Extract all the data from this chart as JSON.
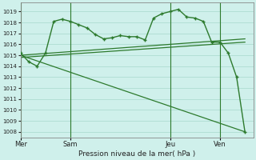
{
  "bg_color": "#cff0eb",
  "grid_color": "#a8d8cc",
  "line_color": "#2d7a2d",
  "ylabel_text": "Pression niveau de la mer( hPa )",
  "ylim": [
    1007.5,
    1019.8
  ],
  "yticks": [
    1008,
    1009,
    1010,
    1011,
    1012,
    1013,
    1014,
    1015,
    1016,
    1017,
    1018,
    1019
  ],
  "day_labels": [
    "Mer",
    "Sam",
    "Jeu",
    "Ven"
  ],
  "day_positions": [
    0,
    6,
    18,
    24
  ],
  "xlim": [
    0,
    28
  ],
  "main_x": [
    0,
    1,
    2,
    3,
    4,
    5,
    6,
    7,
    8,
    9,
    10,
    11,
    12,
    13,
    14,
    15,
    16,
    17,
    18,
    19,
    20,
    21,
    22,
    23,
    24,
    25,
    26,
    27
  ],
  "main_y": [
    1015.2,
    1014.4,
    1014.0,
    1015.2,
    1018.1,
    1018.3,
    1018.1,
    1017.8,
    1017.5,
    1016.9,
    1016.5,
    1016.6,
    1016.8,
    1016.7,
    1016.7,
    1016.4,
    1018.4,
    1018.8,
    1019.0,
    1019.2,
    1018.5,
    1018.4,
    1018.1,
    1016.2,
    1016.2,
    1015.2,
    1013.0,
    1008.0
  ],
  "trend1_x": [
    0,
    27
  ],
  "trend1_y": [
    1015.0,
    1016.5
  ],
  "trend2_x": [
    0,
    27
  ],
  "trend2_y": [
    1014.8,
    1016.2
  ],
  "trend3_x": [
    0,
    27
  ],
  "trend3_y": [
    1015.0,
    1008.0
  ],
  "marker": "+"
}
